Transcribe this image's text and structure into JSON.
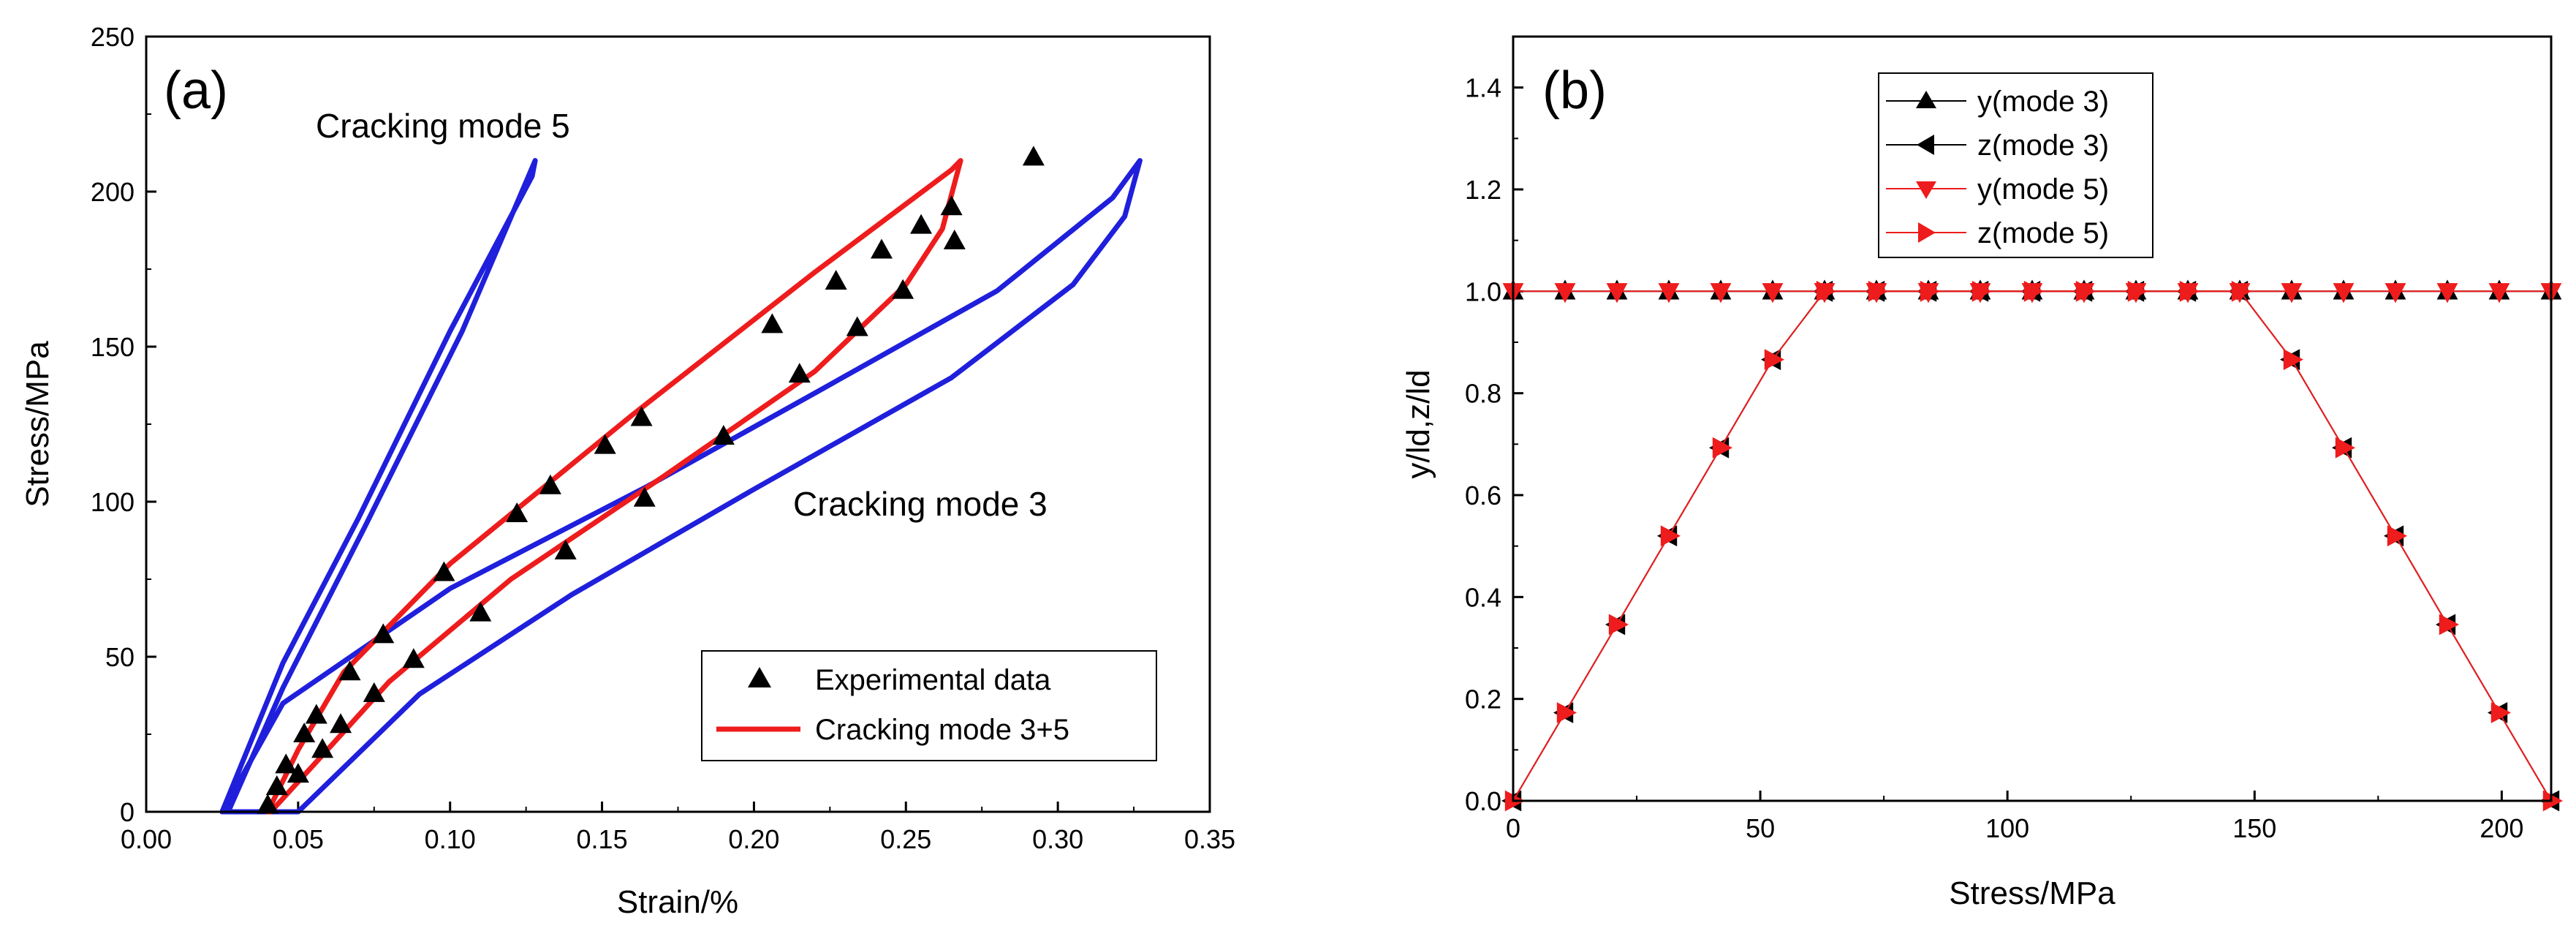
{
  "chart_data": [
    {
      "type": "line",
      "panel_label": "(a)",
      "xlabel": "Strain/%",
      "ylabel": "Stress/MPa",
      "xlim": [
        0.0,
        0.35
      ],
      "ylim": [
        0,
        250
      ],
      "xticks": [
        0.0,
        0.05,
        0.1,
        0.15,
        0.2,
        0.25,
        0.3,
        0.35
      ],
      "xtick_labels": [
        "0.00",
        "0.05",
        "0.10",
        "0.15",
        "0.20",
        "0.25",
        "0.30",
        "0.35"
      ],
      "yticks": [
        0,
        50,
        100,
        150,
        200,
        250
      ],
      "ytick_labels": [
        "0",
        "50",
        "100",
        "150",
        "200",
        "250"
      ],
      "annotations": [
        "Cracking mode 5",
        "Cracking mode 3"
      ],
      "legend": {
        "position": "bottom-right",
        "entries": [
          "Experimental data",
          "Cracking mode 3+5"
        ]
      },
      "colors": {
        "mode5": "#1f1fdc",
        "mode3": "#1f1fdc",
        "mode35": "#ee1c1c",
        "markers": "#000000"
      },
      "series": [
        {
          "name": "Cracking mode 5",
          "style": "line",
          "x": [
            0.025,
            0.045,
            0.07,
            0.1,
            0.127,
            0.128,
            0.104,
            0.072,
            0.045,
            0.027
          ],
          "y": [
            0,
            48,
            95,
            155,
            205,
            210,
            155,
            92,
            40,
            0
          ]
        },
        {
          "name": "Cracking mode 3",
          "style": "line",
          "x": [
            0.025,
            0.045,
            0.1,
            0.165,
            0.22,
            0.28,
            0.318,
            0.327,
            0.322,
            0.305,
            0.265,
            0.2,
            0.14,
            0.09,
            0.05
          ],
          "y": [
            0,
            35,
            72,
            105,
            135,
            168,
            198,
            210,
            192,
            170,
            140,
            104,
            70,
            38,
            0
          ]
        },
        {
          "name": "Cracking mode 3+5",
          "style": "line",
          "x": [
            0.04,
            0.05,
            0.065,
            0.1,
            0.16,
            0.22,
            0.265,
            0.268,
            0.262,
            0.25,
            0.22,
            0.17,
            0.12,
            0.08,
            0.055,
            0.041
          ],
          "y": [
            0,
            20,
            45,
            80,
            128,
            174,
            207,
            210,
            188,
            170,
            142,
            108,
            75,
            42,
            15,
            0
          ]
        },
        {
          "name": "Experimental data",
          "style": "markers",
          "x": [
            0.04,
            0.043,
            0.046,
            0.05,
            0.052,
            0.056,
            0.058,
            0.064,
            0.067,
            0.075,
            0.078,
            0.088,
            0.098,
            0.11,
            0.122,
            0.133,
            0.138,
            0.151,
            0.163,
            0.164,
            0.19,
            0.206,
            0.215,
            0.227,
            0.234,
            0.242,
            0.249,
            0.255,
            0.265,
            0.266,
            0.292
          ],
          "y": [
            2,
            8,
            15,
            12,
            25,
            31,
            20,
            28,
            45,
            38,
            57,
            49,
            77,
            64,
            96,
            105,
            84,
            118,
            127,
            101,
            121,
            157,
            141,
            171,
            156,
            181,
            168,
            189,
            195,
            184,
            211
          ]
        }
      ]
    },
    {
      "type": "line",
      "panel_label": "(b)",
      "xlabel": "Stress/MPa",
      "ylabel": "y/ld,z/ld",
      "xlim": [
        0,
        210
      ],
      "ylim": [
        0.0,
        1.5
      ],
      "xticks": [
        0,
        50,
        100,
        150,
        200
      ],
      "xtick_labels": [
        "0",
        "50",
        "100",
        "150",
        "200"
      ],
      "yticks": [
        0.0,
        0.2,
        0.4,
        0.6,
        0.8,
        1.0,
        1.2,
        1.4
      ],
      "ytick_labels": [
        "0.0",
        "0.2",
        "0.4",
        "0.6",
        "0.8",
        "1.0",
        "1.2",
        "1.4"
      ],
      "legend": {
        "position": "top-center",
        "entries": [
          "y(mode 3)",
          "z(mode 3)",
          "y(mode 5)",
          "z(mode 5)"
        ]
      },
      "colors": {
        "mode3": "#000000",
        "mode5": "#ee1c1c"
      },
      "x": [
        0,
        10.5,
        21,
        31.5,
        42,
        52.5,
        63,
        73.5,
        84,
        94.5,
        105,
        115.5,
        126,
        136.5,
        147,
        157.5,
        168,
        178.5,
        189,
        199.5,
        210
      ],
      "series": [
        {
          "name": "y(mode 3)",
          "marker": "triangle-up",
          "values": [
            1,
            1,
            1,
            1,
            1,
            1,
            1,
            1,
            1,
            1,
            1,
            1,
            1,
            1,
            1,
            1,
            1,
            1,
            1,
            1,
            1
          ]
        },
        {
          "name": "z(mode 3)",
          "marker": "triangle-left",
          "values": [
            0,
            0.173,
            0.346,
            0.52,
            0.693,
            0.866,
            1,
            1,
            1,
            1,
            1,
            1,
            1,
            1,
            1,
            0.866,
            0.693,
            0.52,
            0.346,
            0.173,
            0
          ]
        },
        {
          "name": "y(mode 5)",
          "marker": "triangle-down",
          "values": [
            1,
            1,
            1,
            1,
            1,
            1,
            1,
            1,
            1,
            1,
            1,
            1,
            1,
            1,
            1,
            1,
            1,
            1,
            1,
            1,
            1
          ]
        },
        {
          "name": "z(mode 5)",
          "marker": "triangle-right",
          "values": [
            0,
            0.173,
            0.346,
            0.52,
            0.693,
            0.866,
            1,
            1,
            1,
            1,
            1,
            1,
            1,
            1,
            1,
            0.866,
            0.693,
            0.52,
            0.346,
            0.173,
            0
          ]
        }
      ]
    }
  ]
}
